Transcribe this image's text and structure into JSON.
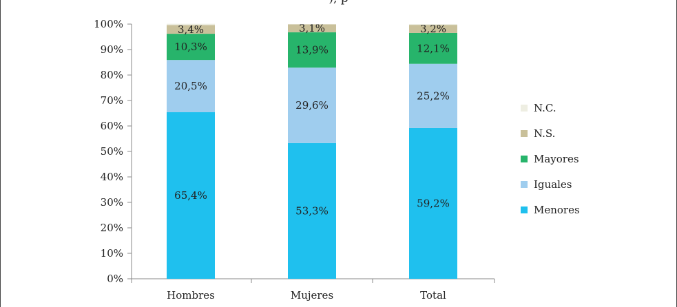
{
  "chart_data": {
    "type": "bar",
    "stacked": true,
    "title": "",
    "xlabel": "",
    "ylabel": "",
    "ylim": [
      0,
      100
    ],
    "yticks": [
      "0%",
      "10%",
      "20%",
      "30%",
      "40%",
      "50%",
      "60%",
      "70%",
      "80%",
      "90%",
      "100%"
    ],
    "categories": [
      "Hombres",
      "Mujeres",
      "Total"
    ],
    "series": [
      {
        "name": "Menores",
        "color": "#1fc0ee",
        "values": [
          65.4,
          53.3,
          59.2
        ],
        "labels": [
          "65,4%",
          "53,3%",
          "59,2%"
        ]
      },
      {
        "name": "Iguales",
        "color": "#9fcdee",
        "values": [
          20.5,
          29.6,
          25.2
        ],
        "labels": [
          "20,5%",
          "29,6%",
          "25,2%"
        ]
      },
      {
        "name": "Mayores",
        "color": "#27b46b",
        "values": [
          10.3,
          13.9,
          12.1
        ],
        "labels": [
          "10,3%",
          "13,9%",
          "12,1%"
        ]
      },
      {
        "name": "N.S.",
        "color": "#c9c09a",
        "values": [
          3.4,
          3.1,
          3.2
        ],
        "labels": [
          "3,4%",
          "3,1%",
          "3,2%"
        ]
      },
      {
        "name": "N.C.",
        "color": "#eeeee2",
        "values": [
          0.5,
          0.1,
          0.3
        ],
        "labels": [
          "",
          "",
          ""
        ]
      }
    ],
    "legend_position": "right",
    "legend_order": [
      "N.C.",
      "N.S.",
      "Mayores",
      "Iguales",
      "Menores"
    ],
    "grid": false
  }
}
